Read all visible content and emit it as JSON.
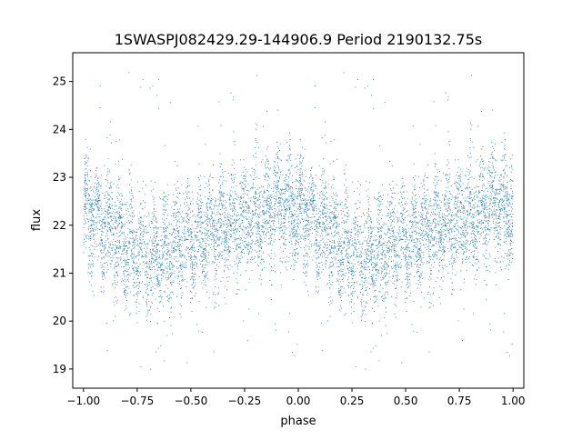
{
  "chart_data": {
    "type": "scatter",
    "title": "1SWASPJ082429.29-144906.9 Period 2190132.75s",
    "xlabel": "phase",
    "ylabel": "flux",
    "xlim": [
      -1.05,
      1.05
    ],
    "ylim": [
      18.6,
      25.6
    ],
    "xticks": [
      -1.0,
      -0.75,
      -0.5,
      -0.25,
      0.0,
      0.25,
      0.5,
      0.75,
      1.0
    ],
    "xtick_labels": [
      "−1.00",
      "−0.75",
      "−0.50",
      "−0.25",
      "0.00",
      "0.25",
      "0.50",
      "0.75",
      "1.00"
    ],
    "yticks": [
      19,
      20,
      21,
      22,
      23,
      24,
      25
    ],
    "ytick_labels": [
      "19",
      "20",
      "21",
      "22",
      "23",
      "24",
      "25"
    ],
    "grid": false,
    "legend": "none",
    "point_color": "#1f77b4",
    "series": [
      {
        "x_range": [
          -1.0,
          1.0
        ],
        "cycle_phase": 1.0,
        "samples_per_cycle": 4200,
        "profile_phase": [
          0.0,
          0.1,
          0.2,
          0.3,
          0.4,
          0.5,
          0.6,
          0.7,
          0.8,
          0.9,
          1.0
        ],
        "profile_median_flux": [
          22.3,
          22.0,
          21.6,
          21.3,
          21.5,
          21.7,
          21.9,
          22.1,
          22.2,
          22.4,
          22.3
        ],
        "flux_scatter": 0.55,
        "outlier_range": [
          18.9,
          25.3
        ]
      }
    ]
  }
}
